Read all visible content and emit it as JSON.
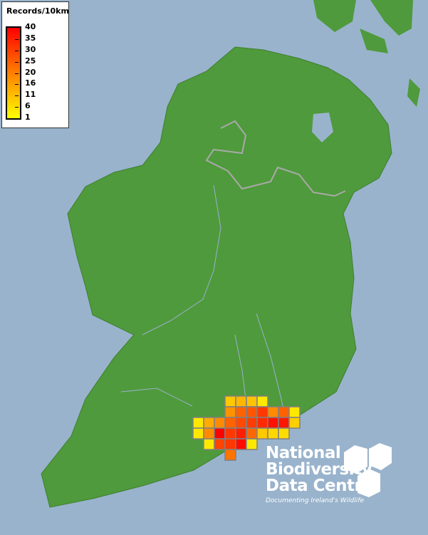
{
  "legend": {
    "title": "Records/10km",
    "ticks": [
      "40",
      "35",
      "30",
      "25",
      "20",
      "16",
      "11",
      "6",
      "1"
    ],
    "min_color": "#ffff00",
    "max_color": "#ff0000"
  },
  "map": {
    "sea_color": "#99b3cc",
    "land_color": "#4f9a3c",
    "grid_size": "10km",
    "records": [
      {
        "row": 0,
        "col": 3,
        "value": 7
      },
      {
        "row": 0,
        "col": 4,
        "value": 10
      },
      {
        "row": 0,
        "col": 5,
        "value": 8
      },
      {
        "row": 0,
        "col": 6,
        "value": 2
      },
      {
        "row": 1,
        "col": 3,
        "value": 16
      },
      {
        "row": 1,
        "col": 4,
        "value": 24
      },
      {
        "row": 1,
        "col": 5,
        "value": 26
      },
      {
        "row": 1,
        "col": 6,
        "value": 31
      },
      {
        "row": 1,
        "col": 7,
        "value": 17
      },
      {
        "row": 1,
        "col": 8,
        "value": 24
      },
      {
        "row": 1,
        "col": 9,
        "value": 2
      },
      {
        "row": 2,
        "col": 0,
        "value": 2
      },
      {
        "row": 2,
        "col": 1,
        "value": 12
      },
      {
        "row": 2,
        "col": 2,
        "value": 17
      },
      {
        "row": 2,
        "col": 3,
        "value": 24
      },
      {
        "row": 2,
        "col": 4,
        "value": 28
      },
      {
        "row": 2,
        "col": 5,
        "value": 30
      },
      {
        "row": 2,
        "col": 6,
        "value": 33
      },
      {
        "row": 2,
        "col": 7,
        "value": 37
      },
      {
        "row": 2,
        "col": 8,
        "value": 36
      },
      {
        "row": 2,
        "col": 9,
        "value": 6
      },
      {
        "row": 3,
        "col": 0,
        "value": 2
      },
      {
        "row": 3,
        "col": 1,
        "value": 17
      },
      {
        "row": 3,
        "col": 2,
        "value": 40
      },
      {
        "row": 3,
        "col": 3,
        "value": 31
      },
      {
        "row": 3,
        "col": 4,
        "value": 35
      },
      {
        "row": 3,
        "col": 5,
        "value": 23
      },
      {
        "row": 3,
        "col": 6,
        "value": 7
      },
      {
        "row": 3,
        "col": 7,
        "value": 5
      },
      {
        "row": 3,
        "col": 8,
        "value": 4
      },
      {
        "row": 4,
        "col": 1,
        "value": 2
      },
      {
        "row": 4,
        "col": 2,
        "value": 29
      },
      {
        "row": 4,
        "col": 3,
        "value": 31
      },
      {
        "row": 4,
        "col": 4,
        "value": 38
      },
      {
        "row": 4,
        "col": 5,
        "value": 2
      },
      {
        "row": 5,
        "col": 3,
        "value": 21
      }
    ]
  },
  "logo": {
    "line1": "National",
    "line2": "Biodiversity",
    "line3": "Data Centre",
    "tagline": "Documenting Ireland's Wildlife"
  }
}
